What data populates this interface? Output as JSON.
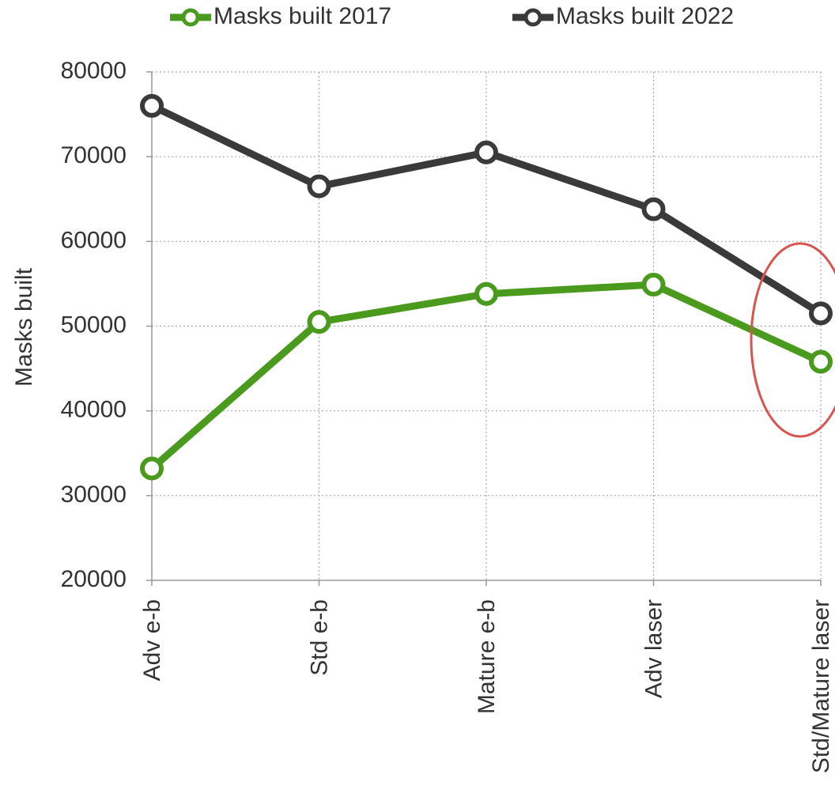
{
  "chart_data": {
    "type": "line",
    "y_label": "Masks built",
    "categories": [
      "Adv e-b",
      "Std e-b",
      "Mature e-b",
      "Adv laser",
      "Std/Mature laser"
    ],
    "series": [
      {
        "name": "Masks built 2017",
        "color": "#4a9a1e",
        "values": [
          33200,
          50500,
          53800,
          54900,
          45800
        ]
      },
      {
        "name": "Masks built 2022",
        "color": "#3a3a3a",
        "values": [
          76000,
          66500,
          70500,
          63800,
          51500
        ]
      }
    ],
    "ylim": [
      20000,
      80000
    ],
    "yticks": [
      20000,
      30000,
      40000,
      50000,
      60000,
      70000,
      80000
    ],
    "grid": true,
    "legend": "top"
  }
}
